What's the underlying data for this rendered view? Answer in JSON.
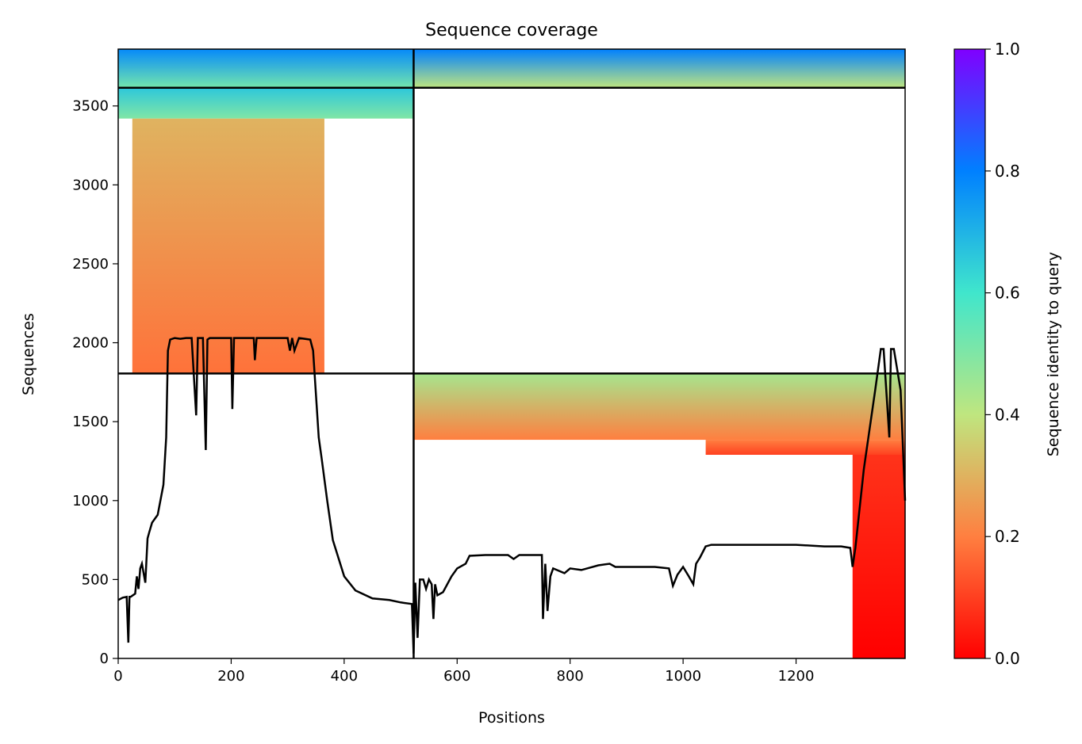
{
  "chart_data": {
    "type": "heatmap",
    "title": "Sequence coverage",
    "xlabel": "Positions",
    "ylabel": "Sequences",
    "xlim": [
      0,
      1393
    ],
    "ylim": [
      0,
      3860
    ],
    "xticks": [
      0,
      200,
      400,
      600,
      800,
      1000,
      1200
    ],
    "xtick_labels": [
      "0",
      "200",
      "400",
      "600",
      "800",
      "1000",
      "1200"
    ],
    "yticks": [
      0,
      500,
      1000,
      1500,
      2000,
      2500,
      3000,
      3500
    ],
    "ytick_labels": [
      "0",
      "500",
      "1000",
      "1500",
      "2000",
      "2500",
      "3000",
      "3500"
    ],
    "colorbar": {
      "label": "Sequence identity to query",
      "range": [
        0,
        1
      ],
      "ticks": [
        0.0,
        0.2,
        0.4,
        0.6,
        0.8,
        1.0
      ],
      "tick_labels": [
        "0.0",
        "0.2",
        "0.4",
        "0.6",
        "0.8",
        "1.0"
      ],
      "colormap": "rainbow_r",
      "colors": [
        "#ff0000",
        "#ff7f40",
        "#bfe67f",
        "#40e6cc",
        "#0080ff",
        "#8000ff"
      ]
    },
    "chain_boundaries": {
      "x": [
        523
      ],
      "y": [
        1805,
        3615
      ]
    },
    "blocks": [
      {
        "x0": 0,
        "x1": 523,
        "y0": 3615,
        "y1": 3860,
        "id_bottom": 0.52,
        "id_top": 0.78
      },
      {
        "x0": 523,
        "x1": 1393,
        "y0": 3615,
        "y1": 3860,
        "id_bottom": 0.4,
        "id_top": 0.8
      },
      {
        "x0": 0,
        "x1": 523,
        "y0": 3420,
        "y1": 3615,
        "id_bottom": 0.5,
        "id_top": 0.66
      },
      {
        "x0": 25,
        "x1": 365,
        "y0": 1805,
        "y1": 3420,
        "id_bottom": 0.18,
        "id_top": 0.3
      },
      {
        "x0": 523,
        "x1": 1393,
        "y0": 1385,
        "y1": 1805,
        "id_bottom": 0.2,
        "id_top": 0.44
      },
      {
        "x0": 1040,
        "x1": 1393,
        "y0": 1290,
        "y1": 1385,
        "id_bottom": 0.1,
        "id_top": 0.2
      },
      {
        "x0": 1300,
        "x1": 1393,
        "y0": 0,
        "y1": 1290,
        "id_bottom": 0.0,
        "id_top": 0.08
      }
    ],
    "coverage_line": {
      "x": [
        0,
        8,
        15,
        18,
        20,
        22,
        30,
        33,
        36,
        39,
        42,
        48,
        52,
        55,
        60,
        70,
        80,
        85,
        88,
        92,
        100,
        110,
        120,
        130,
        138,
        141,
        144,
        150,
        155,
        158,
        162,
        170,
        180,
        190,
        200,
        202,
        205,
        210,
        230,
        240,
        242,
        245,
        260,
        280,
        290,
        300,
        304,
        308,
        312,
        320,
        340,
        345,
        355,
        360,
        370,
        380,
        400,
        420,
        450,
        480,
        500,
        520,
        523,
        526,
        530,
        534,
        540,
        545,
        550,
        555,
        558,
        561,
        565,
        575,
        590,
        600,
        615,
        622,
        650,
        690,
        700,
        710,
        750,
        752,
        756,
        760,
        765,
        770,
        790,
        800,
        820,
        850,
        870,
        880,
        900,
        950,
        975,
        982,
        990,
        1000,
        1010,
        1018,
        1023,
        1030,
        1040,
        1050,
        1100,
        1200,
        1250,
        1280,
        1296,
        1300,
        1305,
        1320,
        1340,
        1350,
        1355,
        1365,
        1368,
        1373,
        1385,
        1393
      ],
      "y": [
        370,
        385,
        390,
        100,
        390,
        390,
        410,
        520,
        440,
        570,
        600,
        480,
        760,
        800,
        860,
        910,
        1100,
        1400,
        1950,
        2020,
        2030,
        2025,
        2030,
        2030,
        1540,
        2030,
        2030,
        2030,
        1320,
        2020,
        2030,
        2030,
        2030,
        2030,
        2030,
        1580,
        2030,
        2030,
        2030,
        2030,
        1890,
        2030,
        2030,
        2030,
        2030,
        2030,
        1950,
        2030,
        1950,
        2030,
        2020,
        1950,
        1400,
        1270,
        1000,
        750,
        520,
        430,
        380,
        370,
        355,
        345,
        30,
        480,
        130,
        500,
        500,
        440,
        500,
        470,
        250,
        470,
        400,
        420,
        520,
        570,
        600,
        650,
        655,
        655,
        630,
        655,
        655,
        250,
        600,
        300,
        520,
        570,
        540,
        570,
        560,
        590,
        600,
        580,
        580,
        580,
        570,
        460,
        530,
        580,
        520,
        470,
        600,
        640,
        710,
        720,
        720,
        720,
        710,
        710,
        700,
        580,
        700,
        1200,
        1700,
        1960,
        1960,
        1400,
        1960,
        1960,
        1700,
        1000
      ]
    }
  }
}
